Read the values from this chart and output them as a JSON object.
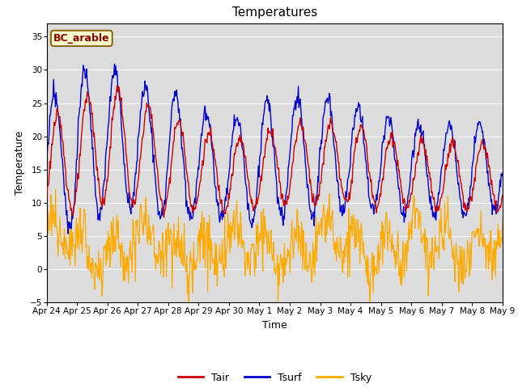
{
  "title": "Temperatures",
  "xlabel": "Time",
  "ylabel": "Temperature",
  "ylim": [
    -5,
    37
  ],
  "yticks": [
    -5,
    0,
    5,
    10,
    15,
    20,
    25,
    30,
    35
  ],
  "bg_color": "#dcdcdc",
  "label_box_text": "BC_arable",
  "legend_labels": [
    "Tair",
    "Tsurf",
    "Tsky"
  ],
  "colors": {
    "Tair": "#cc0000",
    "Tsurf": "#0000cc",
    "Tsky": "#ffaa00"
  },
  "n_points": 720,
  "total_days": 15.0,
  "tick_positions": [
    0,
    1,
    2,
    3,
    4,
    5,
    6,
    7,
    8,
    9,
    10,
    11,
    12,
    13,
    14,
    15
  ],
  "tick_labels": [
    "Apr 24",
    "Apr 25",
    "Apr 26",
    "Apr 27",
    "Apr 28",
    "Apr 29",
    "Apr 30",
    "May 1",
    "May 2",
    "May 3",
    "May 4",
    "May 5",
    "May 6",
    "May 7",
    "May 8",
    "May 9"
  ],
  "tick_fontsize": 7.5,
  "title_fontsize": 11,
  "axis_label_fontsize": 9,
  "legend_fontsize": 9
}
